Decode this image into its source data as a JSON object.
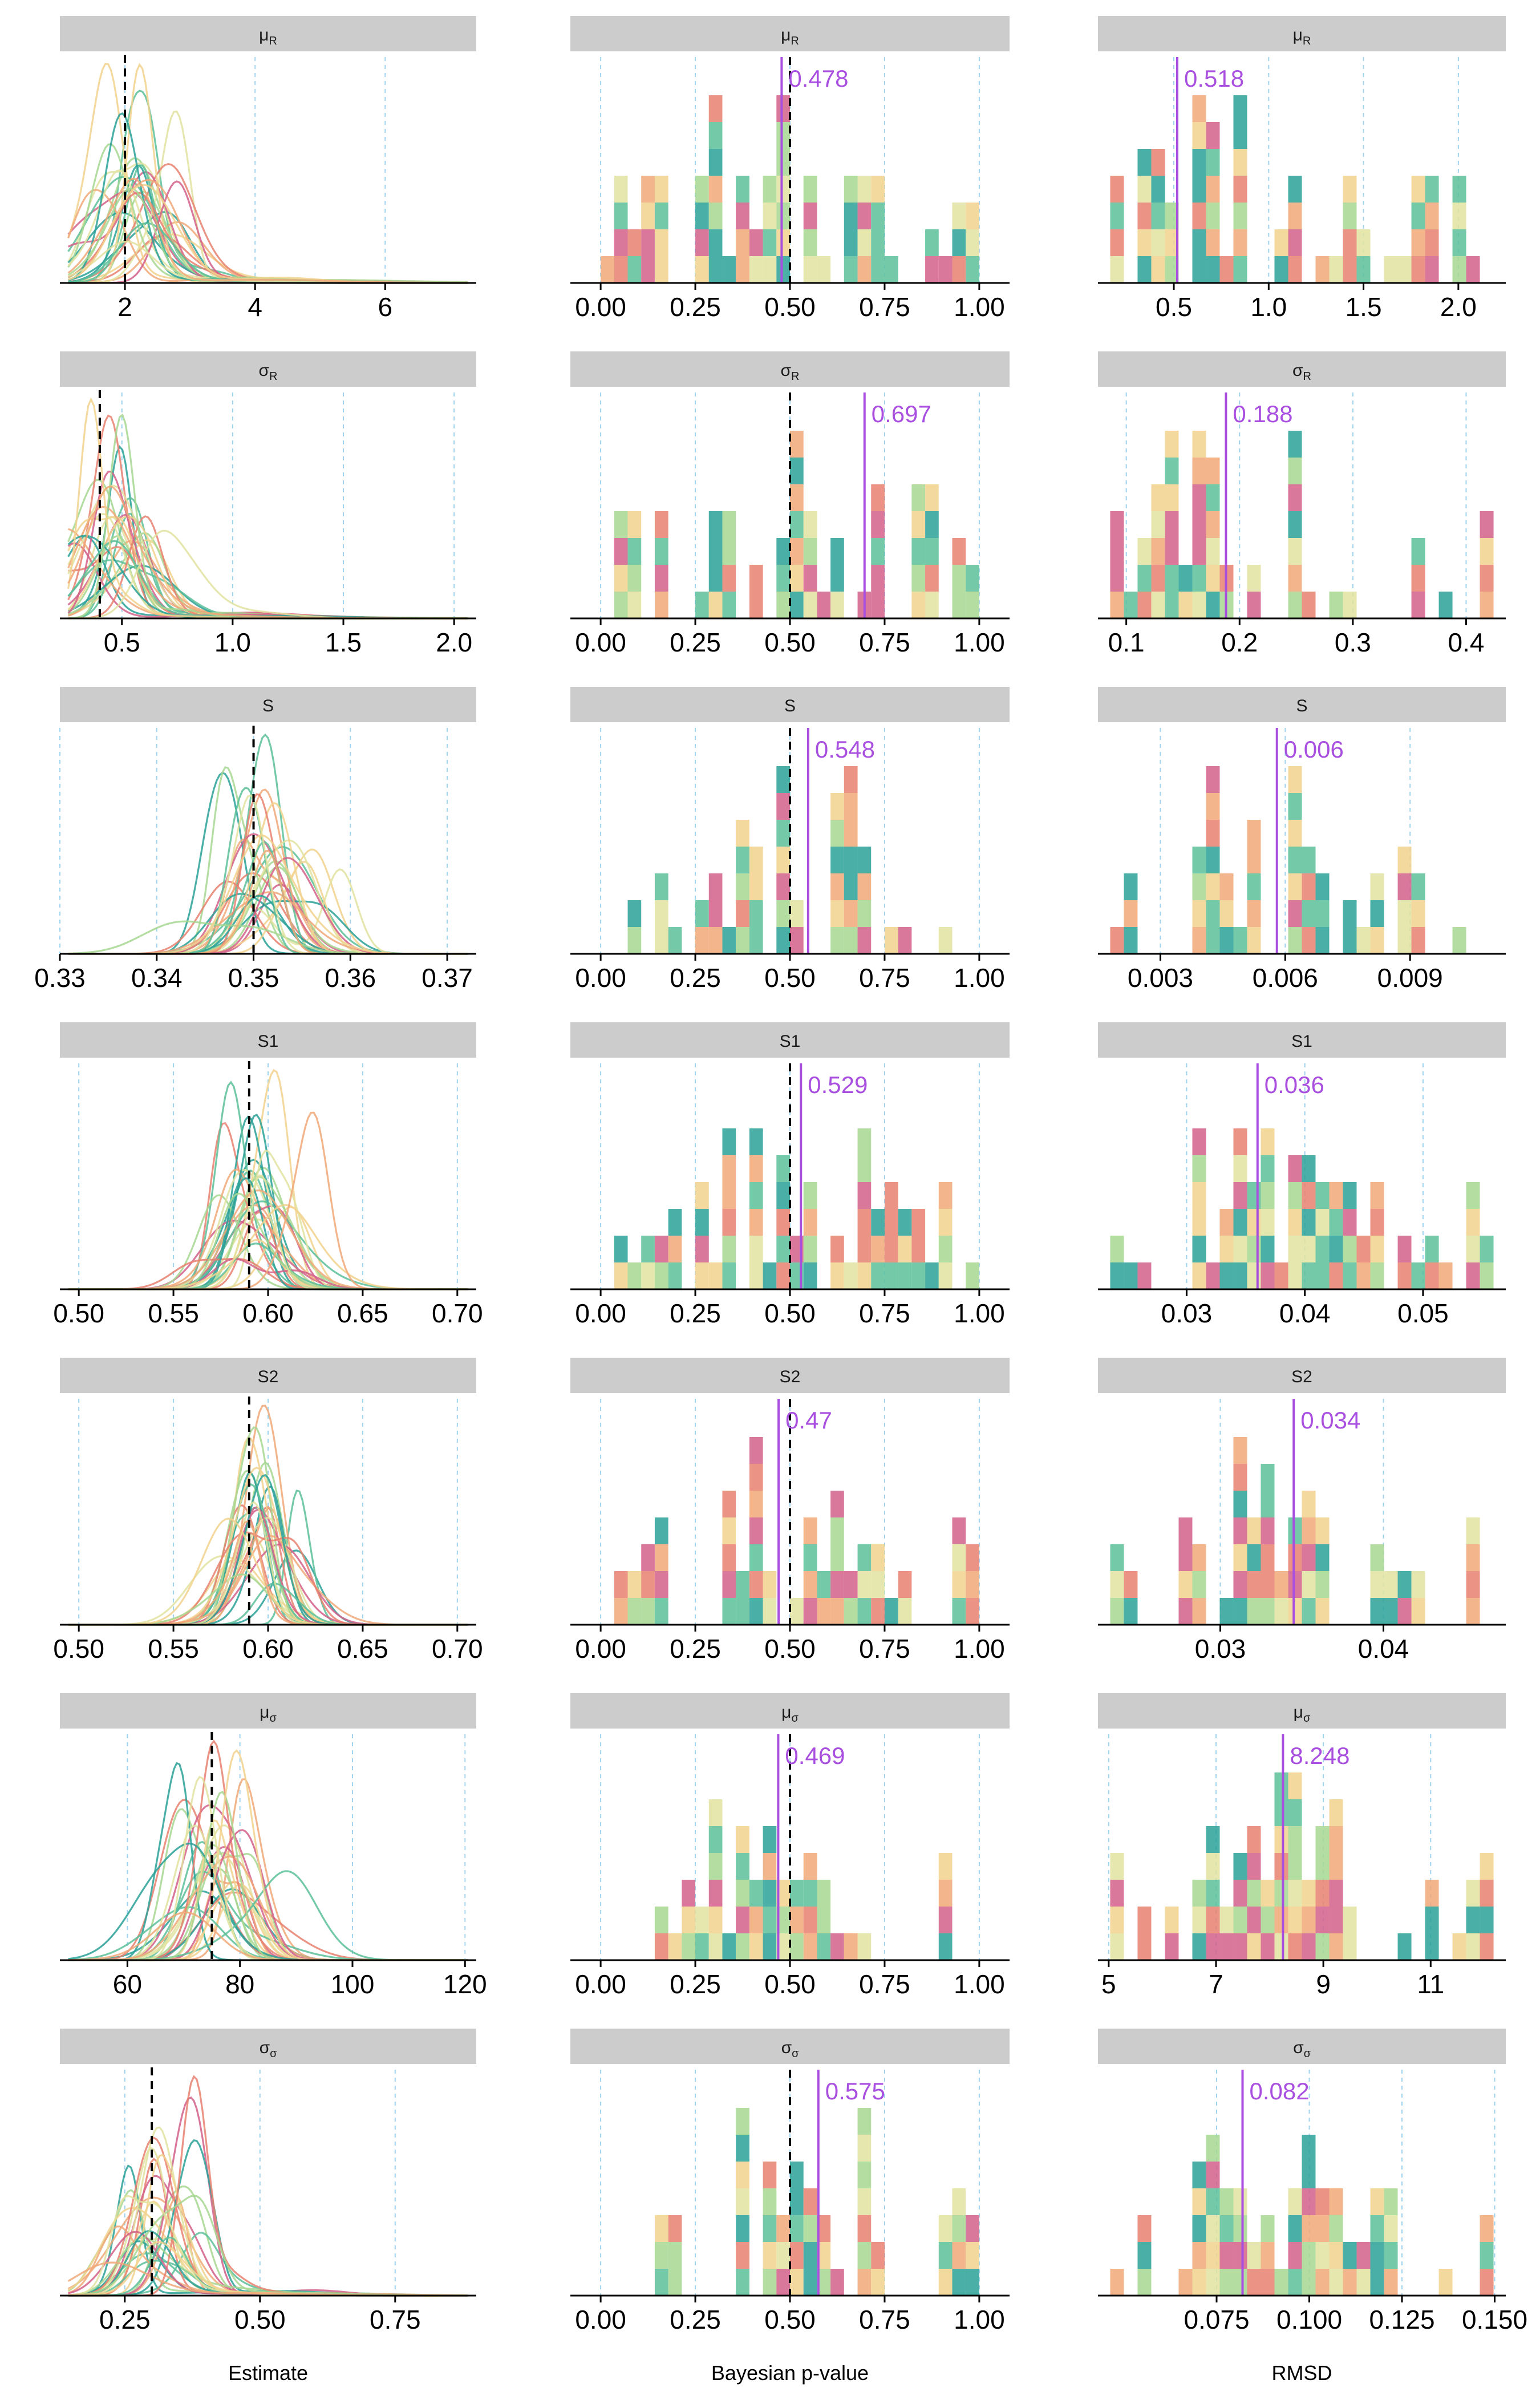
{
  "chart_data": {
    "type": "faceted",
    "columns": [
      {
        "key": "estimate",
        "xlabel": "Estimate",
        "kind": "density"
      },
      {
        "key": "pvalue",
        "xlabel": "Bayesian p-value",
        "kind": "histogram"
      },
      {
        "key": "rmsd",
        "xlabel": "RMSD",
        "kind": "histogram"
      }
    ],
    "rows": [
      {
        "param_label": "μR",
        "param_base": "μ",
        "param_sub": "R",
        "estimate": {
          "xlim": [
            1.0,
            7.4
          ],
          "ticks": [
            2,
            4,
            6
          ],
          "tick_labels": [
            "2",
            "4",
            "6"
          ],
          "true_value": 2.0
        },
        "pvalue": {
          "xlim": [
            -0.08,
            1.08
          ],
          "ticks": [
            0,
            0.25,
            0.5,
            0.75,
            1.0
          ],
          "tick_labels": [
            "0.00",
            "0.25",
            "0.50",
            "0.75",
            "1.00"
          ],
          "mean": 0.478,
          "mean_label": "0.478",
          "true_line": 0.5
        },
        "rmsd": {
          "xlim": [
            0.1,
            2.25
          ],
          "ticks": [
            0.5,
            1.0,
            1.5,
            2.0
          ],
          "tick_labels": [
            "0.5",
            "1.0",
            "1.5",
            "2.0"
          ],
          "mean": 0.518,
          "mean_label": "0.518"
        }
      },
      {
        "param_label": "σR",
        "param_base": "σ",
        "param_sub": "R",
        "estimate": {
          "xlim": [
            0.22,
            2.1
          ],
          "ticks": [
            0.5,
            1.0,
            1.5,
            2.0
          ],
          "tick_labels": [
            "0.5",
            "1.0",
            "1.5",
            "2.0"
          ],
          "true_value": 0.4
        },
        "pvalue": {
          "xlim": [
            -0.08,
            1.08
          ],
          "ticks": [
            0,
            0.25,
            0.5,
            0.75,
            1.0
          ],
          "tick_labels": [
            "0.00",
            "0.25",
            "0.50",
            "0.75",
            "1.00"
          ],
          "mean": 0.697,
          "mean_label": "0.697",
          "true_line": 0.5
        },
        "rmsd": {
          "xlim": [
            0.075,
            0.435
          ],
          "ticks": [
            0.1,
            0.2,
            0.3,
            0.4
          ],
          "tick_labels": [
            "0.1",
            "0.2",
            "0.3",
            "0.4"
          ],
          "mean": 0.188,
          "mean_label": "0.188"
        }
      },
      {
        "param_label": "S",
        "param_base": "S",
        "param_sub": "",
        "estimate": {
          "xlim": [
            0.33,
            0.373
          ],
          "ticks": [
            0.33,
            0.34,
            0.35,
            0.36,
            0.37
          ],
          "tick_labels": [
            "0.33",
            "0.34",
            "0.35",
            "0.36",
            "0.37"
          ],
          "true_value": 0.35
        },
        "pvalue": {
          "xlim": [
            -0.08,
            1.08
          ],
          "ticks": [
            0,
            0.25,
            0.5,
            0.75,
            1.0
          ],
          "tick_labels": [
            "0.00",
            "0.25",
            "0.50",
            "0.75",
            "1.00"
          ],
          "mean": 0.548,
          "mean_label": "0.548",
          "true_line": 0.5
        },
        "rmsd": {
          "xlim": [
            0.0015,
            0.0113
          ],
          "ticks": [
            0.003,
            0.006,
            0.009
          ],
          "tick_labels": [
            "0.003",
            "0.006",
            "0.009"
          ],
          "mean": 0.0058,
          "mean_label": "0.006"
        }
      },
      {
        "param_label": "S1",
        "param_base": "S1",
        "param_sub": "",
        "estimate": {
          "xlim": [
            0.49,
            0.71
          ],
          "ticks": [
            0.5,
            0.55,
            0.6,
            0.65,
            0.7
          ],
          "tick_labels": [
            "0.50",
            "0.55",
            "0.60",
            "0.65",
            "0.70"
          ],
          "true_value": 0.59
        },
        "pvalue": {
          "xlim": [
            -0.08,
            1.08
          ],
          "ticks": [
            0,
            0.25,
            0.5,
            0.75,
            1.0
          ],
          "tick_labels": [
            "0.00",
            "0.25",
            "0.50",
            "0.75",
            "1.00"
          ],
          "mean": 0.529,
          "mean_label": "0.529",
          "true_line": 0.5
        },
        "rmsd": {
          "xlim": [
            0.0225,
            0.057
          ],
          "ticks": [
            0.03,
            0.04,
            0.05
          ],
          "tick_labels": [
            "0.03",
            "0.04",
            "0.05"
          ],
          "mean": 0.036,
          "mean_label": "0.036"
        }
      },
      {
        "param_label": "S2",
        "param_base": "S2",
        "param_sub": "",
        "estimate": {
          "xlim": [
            0.49,
            0.71
          ],
          "ticks": [
            0.5,
            0.55,
            0.6,
            0.65,
            0.7
          ],
          "tick_labels": [
            "0.50",
            "0.55",
            "0.60",
            "0.65",
            "0.70"
          ],
          "true_value": 0.59
        },
        "pvalue": {
          "xlim": [
            -0.08,
            1.08
          ],
          "ticks": [
            0,
            0.25,
            0.5,
            0.75,
            1.0
          ],
          "tick_labels": [
            "0.00",
            "0.25",
            "0.50",
            "0.75",
            "1.00"
          ],
          "mean": 0.47,
          "mean_label": "0.47",
          "true_line": 0.5
        },
        "rmsd": {
          "xlim": [
            0.0225,
            0.0475
          ],
          "ticks": [
            0.03,
            0.04
          ],
          "tick_labels": [
            "0.03",
            "0.04"
          ],
          "mean": 0.0345,
          "mean_label": "0.034"
        }
      },
      {
        "param_label": "μσ",
        "param_base": "μ",
        "param_sub": "σ",
        "estimate": {
          "xlim": [
            48,
            122
          ],
          "ticks": [
            60,
            80,
            100,
            120
          ],
          "tick_labels": [
            "60",
            "80",
            "100",
            "120"
          ],
          "true_value": 75
        },
        "pvalue": {
          "xlim": [
            -0.08,
            1.08
          ],
          "ticks": [
            0,
            0.25,
            0.5,
            0.75,
            1.0
          ],
          "tick_labels": [
            "0.00",
            "0.25",
            "0.50",
            "0.75",
            "1.00"
          ],
          "mean": 0.469,
          "mean_label": "0.469",
          "true_line": 0.5
        },
        "rmsd": {
          "xlim": [
            4.8,
            12.4
          ],
          "ticks": [
            5,
            7,
            9,
            11
          ],
          "tick_labels": [
            "5",
            "7",
            "9",
            "11"
          ],
          "mean": 8.248,
          "mean_label": "8.248"
        }
      },
      {
        "param_label": "σσ",
        "param_base": "σ",
        "param_sub": "σ",
        "estimate": {
          "xlim": [
            0.13,
            0.9
          ],
          "ticks": [
            0.25,
            0.5,
            0.75
          ],
          "tick_labels": [
            "0.25",
            "0.50",
            "0.75"
          ],
          "true_value": 0.3
        },
        "pvalue": {
          "xlim": [
            -0.08,
            1.08
          ],
          "ticks": [
            0,
            0.25,
            0.5,
            0.75,
            1.0
          ],
          "tick_labels": [
            "0.00",
            "0.25",
            "0.50",
            "0.75",
            "1.00"
          ],
          "mean": 0.575,
          "mean_label": "0.575",
          "true_line": 0.5
        },
        "rmsd": {
          "xlim": [
            0.043,
            0.153
          ],
          "ticks": [
            0.075,
            0.1,
            0.125,
            0.15
          ],
          "tick_labels": [
            "0.075",
            "0.100",
            "0.125",
            "0.150"
          ],
          "mean": 0.082,
          "mean_label": "0.082"
        }
      }
    ],
    "grid": "vertical dashed lines at x ticks",
    "legend": "none",
    "colors": {
      "palette": [
        "#2aa198",
        "#5cc09a",
        "#a6d790",
        "#e2e3a0",
        "#f2d28e",
        "#f0a878",
        "#e8806e",
        "#d4608a"
      ],
      "strip_fill": "#cccccc",
      "gridline": "#9fd3ee",
      "mean_line": "#a94fe0",
      "true_line": "#000000"
    }
  }
}
